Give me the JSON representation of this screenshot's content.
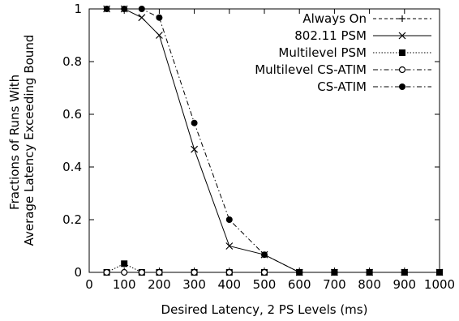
{
  "chart_data": {
    "type": "line",
    "title": "",
    "xlabel": "Desired Latency, 2 PS Levels (ms)",
    "ylabel": [
      "Fractions of Runs With",
      "Average Latency Exceeding Bound"
    ],
    "xlim": [
      0,
      1000
    ],
    "ylim": [
      0,
      1
    ],
    "xticks": [
      0,
      100,
      200,
      300,
      400,
      500,
      600,
      700,
      800,
      900,
      1000
    ],
    "yticks": [
      0,
      0.2,
      0.4,
      0.6,
      0.8,
      1
    ],
    "ytick_labels": [
      "0",
      "0.2",
      "0.4",
      "0.6",
      "0.8",
      "1"
    ],
    "grid": false,
    "legend_position": "top-right",
    "series": [
      {
        "name": "Always On",
        "marker": "plus",
        "line": "dashed",
        "x": [
          50,
          100,
          150,
          200,
          300,
          400,
          500,
          600,
          700,
          800,
          900,
          1000
        ],
        "y": [
          0,
          0,
          0,
          0,
          0,
          0,
          0,
          0,
          0,
          0,
          0,
          0
        ]
      },
      {
        "name": "802.11 PSM",
        "marker": "x",
        "line": "solid",
        "x": [
          50,
          100,
          150,
          200,
          300,
          400,
          500,
          600,
          700,
          800,
          900,
          1000
        ],
        "y": [
          1,
          1,
          0.967,
          0.9,
          0.467,
          0.1,
          0.067,
          0,
          0,
          0,
          0,
          0
        ]
      },
      {
        "name": "Multilevel PSM",
        "marker": "filled-square",
        "line": "dotted",
        "x": [
          50,
          100,
          150,
          200,
          300,
          400,
          500,
          600,
          700,
          800,
          900,
          1000
        ],
        "y": [
          0,
          0.033,
          0,
          0,
          0,
          0,
          0,
          0,
          0,
          0,
          0,
          0
        ]
      },
      {
        "name": "Multilevel CS-ATIM",
        "marker": "open-circle",
        "line": "dashdot",
        "x": [
          50,
          100,
          150,
          200,
          300,
          400,
          500,
          600,
          700,
          800,
          900,
          1000
        ],
        "y": [
          0,
          0,
          0,
          0,
          0,
          0,
          0,
          0,
          0,
          0,
          0,
          0
        ]
      },
      {
        "name": "CS-ATIM",
        "marker": "filled-circle",
        "line": "dashdot",
        "x": [
          50,
          100,
          150,
          200,
          300,
          400,
          500,
          600,
          700,
          800,
          900,
          1000
        ],
        "y": [
          1,
          1,
          1,
          0.967,
          0.567,
          0.2,
          0.067,
          0,
          0,
          0,
          0,
          0
        ]
      }
    ]
  }
}
